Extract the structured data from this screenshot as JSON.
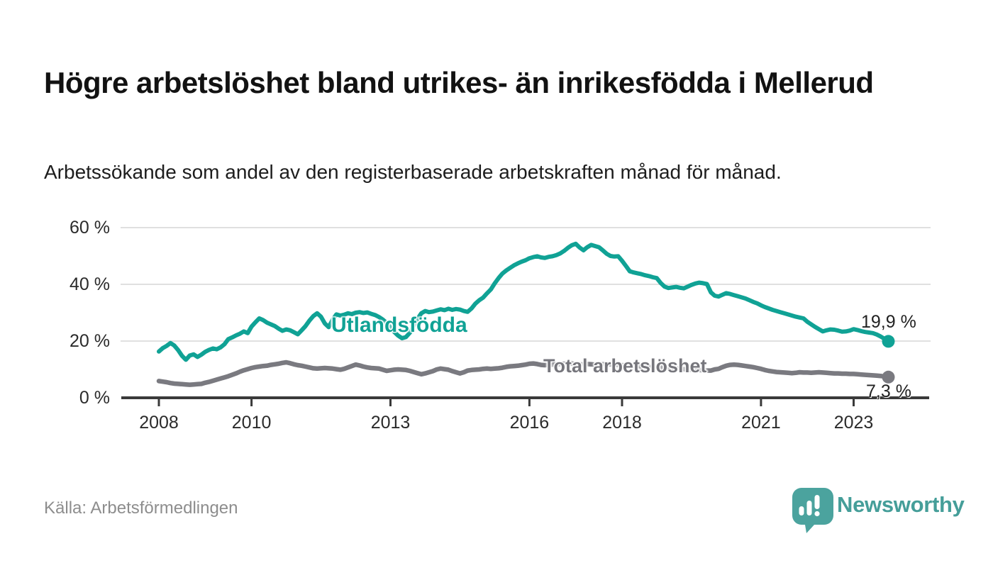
{
  "header": {
    "title": "Högre arbetslöshet bland utrikes- än inrikesfödda i Mellerud",
    "subtitle": "Arbetssökande som andel av den registerbaserade arbetskraften månad för månad."
  },
  "footer": {
    "source": "Källa: Arbetsförmedlingen",
    "brand": "Newsworthy",
    "brand_color": "#459e99",
    "logo_bubble_color": "#4ba39e"
  },
  "chart_data": {
    "type": "line",
    "unit": "%",
    "start": "2008-01",
    "frequency": "monthly",
    "ylim": [
      0,
      60
    ],
    "grid": true,
    "axis_color": "#3a3a3a",
    "gridline_color": "#e0e0e0",
    "y_ticks": [
      {
        "label": "0 %",
        "value": 0
      },
      {
        "label": "20 %",
        "value": 20
      },
      {
        "label": "40 %",
        "value": 40
      },
      {
        "label": "60 %",
        "value": 60
      }
    ],
    "x_ticks": [
      {
        "label": "2008",
        "year": 2008
      },
      {
        "label": "2010",
        "year": 2010
      },
      {
        "label": "2013",
        "year": 2013
      },
      {
        "label": "2016",
        "year": 2016
      },
      {
        "label": "2018",
        "year": 2018
      },
      {
        "label": "2021",
        "year": 2021
      },
      {
        "label": "2023",
        "year": 2023
      }
    ],
    "series": [
      {
        "name": "Utlandsfödda",
        "color": "#10a295",
        "end_label": "19,9 %",
        "end_value": 19.9,
        "values": [
          16.3,
          17.5,
          18.3,
          19.3,
          18.4,
          16.8,
          14.8,
          13.4,
          14.9,
          15.3,
          14.4,
          15.2,
          16.2,
          16.9,
          17.4,
          17.1,
          17.8,
          18.9,
          20.7,
          21.3,
          22.0,
          22.6,
          23.4,
          22.8,
          25.1,
          26.6,
          28.0,
          27.4,
          26.5,
          25.9,
          25.3,
          24.4,
          23.6,
          24.1,
          23.8,
          23.1,
          22.4,
          23.8,
          25.3,
          27.2,
          28.8,
          29.8,
          28.6,
          26.2,
          24.9,
          27.5,
          29.4,
          29.0,
          29.3,
          29.8,
          29.5,
          30.0,
          30.2,
          29.9,
          30.1,
          29.6,
          29.2,
          28.5,
          27.6,
          26.4,
          24.8,
          23.2,
          21.9,
          21.0,
          21.4,
          22.9,
          25.4,
          27.8,
          29.8,
          30.6,
          30.2,
          30.4,
          30.8,
          31.2,
          30.9,
          31.4,
          31.0,
          31.3,
          31.1,
          30.6,
          30.3,
          31.5,
          33.2,
          34.4,
          35.3,
          36.8,
          38.2,
          40.3,
          42.2,
          43.8,
          44.9,
          45.8,
          46.7,
          47.4,
          48.0,
          48.5,
          49.2,
          49.6,
          49.9,
          49.5,
          49.3,
          49.7,
          49.9,
          50.3,
          50.9,
          51.8,
          52.9,
          53.8,
          54.3,
          53.0,
          52.0,
          53.1,
          53.9,
          53.5,
          53.1,
          52.0,
          50.8,
          50.0,
          49.8,
          49.9,
          48.3,
          46.5,
          44.6,
          44.2,
          43.9,
          43.6,
          43.2,
          42.9,
          42.5,
          42.2,
          40.5,
          39.2,
          38.7,
          38.9,
          39.1,
          38.8,
          38.6,
          39.2,
          39.8,
          40.3,
          40.6,
          40.4,
          40.1,
          37.2,
          36.0,
          35.7,
          36.3,
          36.9,
          36.6,
          36.2,
          35.8,
          35.4,
          35.0,
          34.4,
          33.8,
          33.3,
          32.6,
          32.0,
          31.5,
          31.0,
          30.6,
          30.2,
          29.8,
          29.4,
          29.0,
          28.6,
          28.3,
          28.0,
          26.8,
          25.9,
          25.0,
          24.2,
          23.4,
          23.8,
          24.1,
          24.0,
          23.7,
          23.3,
          23.4,
          23.7,
          24.2,
          23.9,
          23.5,
          23.2,
          23.0,
          22.8,
          22.3,
          21.6,
          20.8,
          19.9
        ]
      },
      {
        "name": "Total arbetslöshet",
        "color": "#7a7a80",
        "end_label": "7,3 %",
        "end_value": 7.3,
        "values": [
          5.9,
          5.7,
          5.5,
          5.2,
          5.0,
          4.9,
          4.8,
          4.7,
          4.6,
          4.7,
          4.8,
          4.9,
          5.3,
          5.6,
          6.0,
          6.4,
          6.8,
          7.2,
          7.6,
          8.1,
          8.6,
          9.2,
          9.7,
          10.1,
          10.5,
          10.8,
          11.0,
          11.2,
          11.3,
          11.6,
          11.8,
          12.0,
          12.3,
          12.5,
          12.2,
          11.8,
          11.5,
          11.3,
          11.0,
          10.7,
          10.4,
          10.3,
          10.4,
          10.5,
          10.4,
          10.3,
          10.1,
          9.9,
          10.2,
          10.7,
          11.2,
          11.7,
          11.4,
          11.0,
          10.7,
          10.5,
          10.4,
          10.3,
          9.9,
          9.5,
          9.7,
          9.9,
          10.0,
          9.9,
          9.8,
          9.5,
          9.1,
          8.7,
          8.3,
          8.6,
          9.0,
          9.4,
          10.0,
          10.3,
          10.1,
          9.9,
          9.4,
          9.0,
          8.6,
          9.0,
          9.6,
          9.8,
          9.9,
          10.0,
          10.2,
          10.3,
          10.2,
          10.3,
          10.4,
          10.6,
          10.9,
          11.1,
          11.2,
          11.3,
          11.5,
          11.7,
          12.0,
          12.1,
          11.9,
          11.6,
          11.5,
          11.6,
          11.7,
          11.8,
          11.9,
          12.0,
          12.1,
          12.1,
          11.6,
          11.7,
          11.8,
          11.9,
          11.8,
          11.7,
          11.7,
          11.8,
          11.9,
          11.8,
          11.7,
          11.6,
          11.5,
          11.4,
          11.4,
          11.3,
          11.2,
          11.1,
          11.0,
          10.9,
          10.8,
          10.8,
          10.7,
          10.6,
          10.5,
          10.4,
          10.3,
          10.2,
          10.1,
          10.0,
          9.9,
          9.8,
          9.8,
          9.7,
          9.6,
          9.6,
          10.0,
          10.2,
          10.8,
          11.3,
          11.6,
          11.7,
          11.6,
          11.4,
          11.2,
          11.0,
          10.8,
          10.5,
          10.2,
          9.8,
          9.5,
          9.3,
          9.1,
          9.0,
          8.9,
          8.8,
          8.7,
          8.8,
          9.0,
          8.9,
          8.9,
          8.8,
          8.9,
          9.0,
          8.9,
          8.8,
          8.7,
          8.6,
          8.6,
          8.5,
          8.5,
          8.4,
          8.4,
          8.3,
          8.2,
          8.1,
          8.0,
          7.9,
          7.8,
          7.7,
          7.5,
          7.3
        ]
      }
    ]
  }
}
